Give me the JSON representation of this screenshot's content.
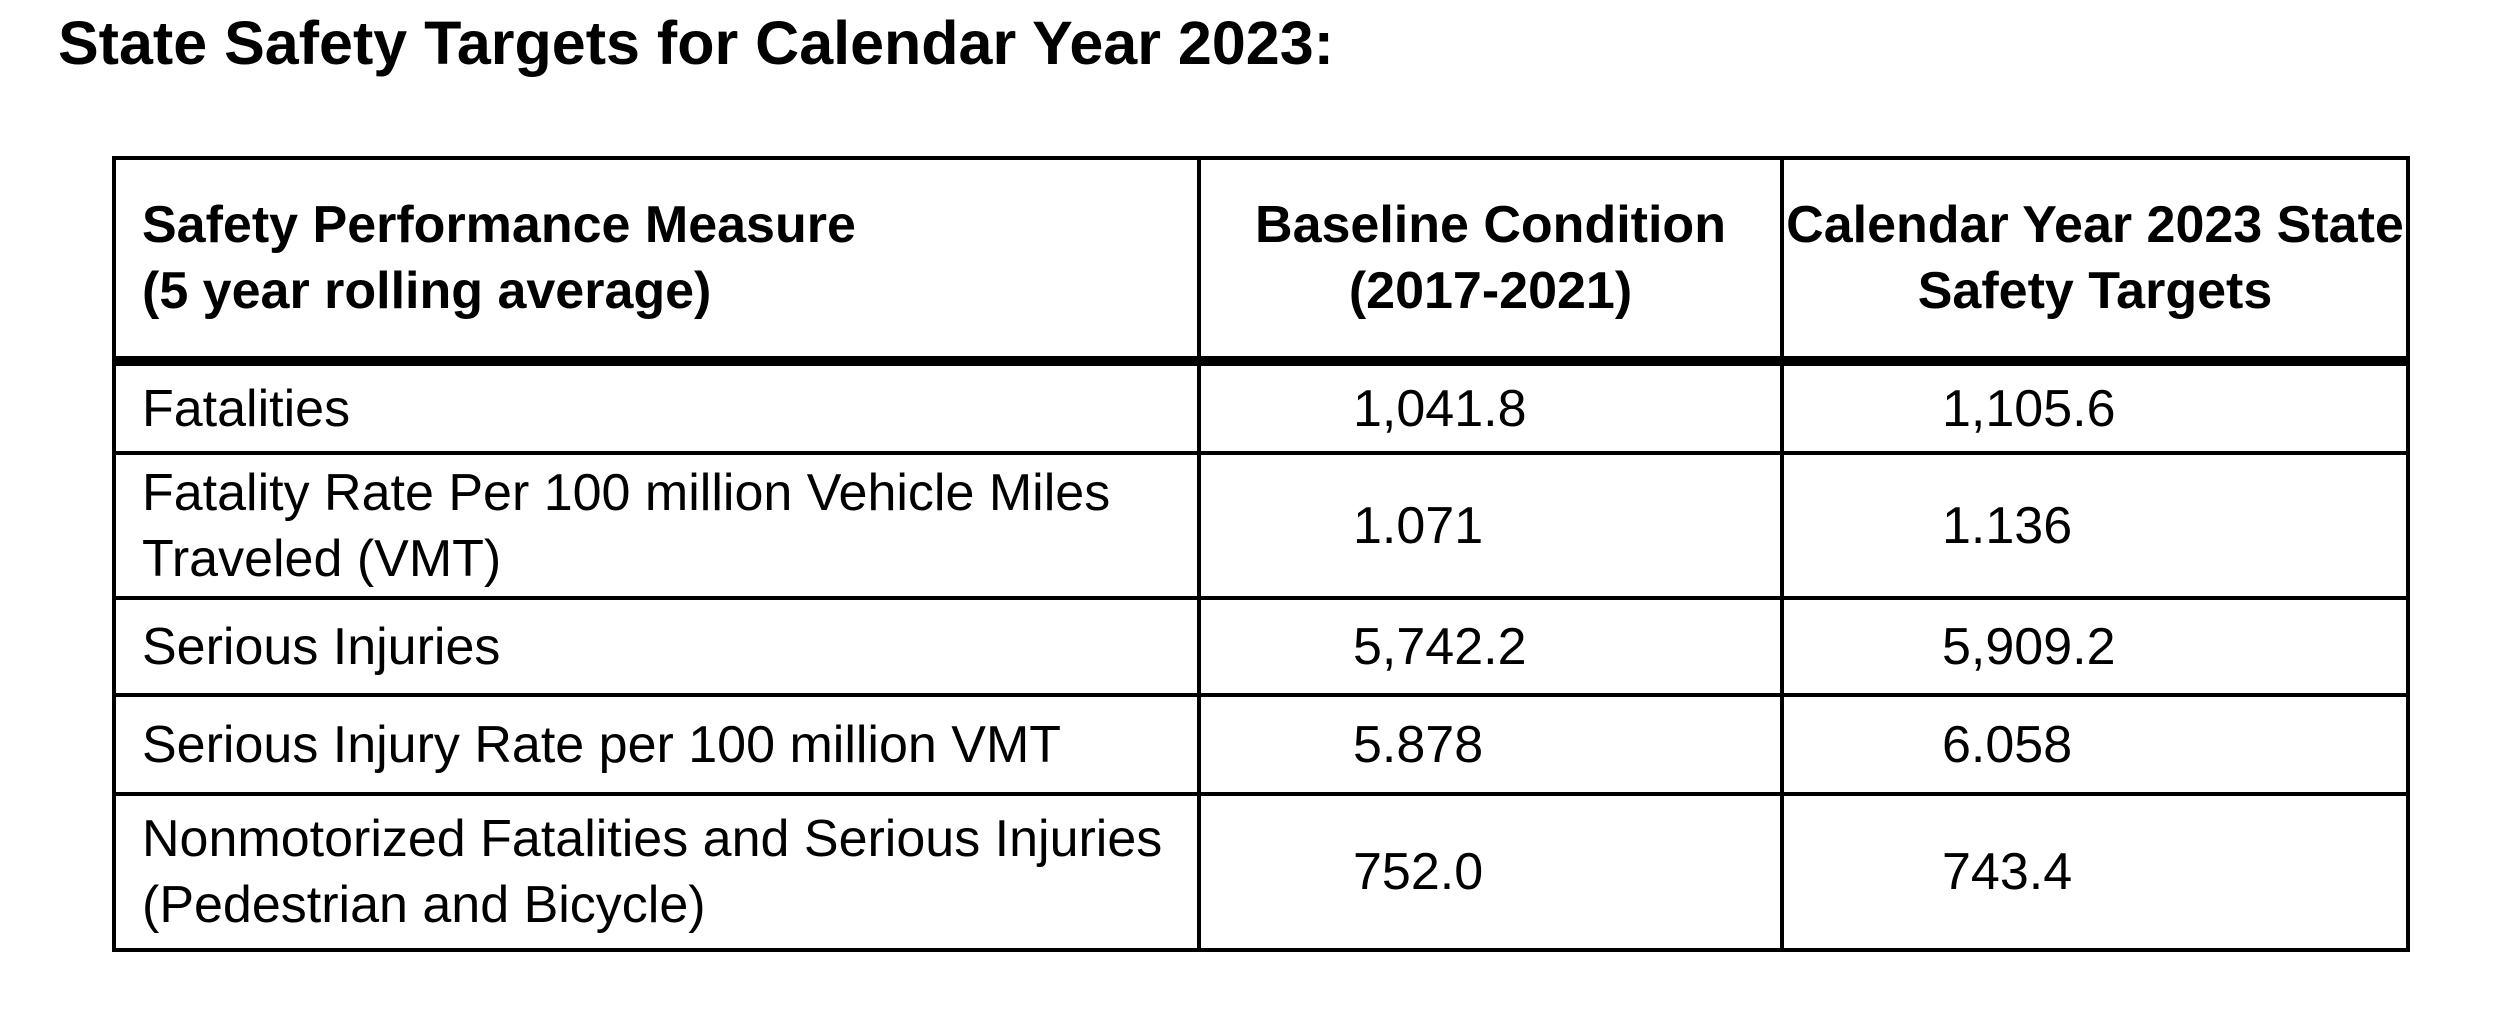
{
  "page": {
    "title": "State Safety Targets for Calendar Year 2023:"
  },
  "table": {
    "header": {
      "measure_line1": "Safety Performance Measure",
      "measure_line2": "(5 year rolling average)",
      "baseline_line1": "Baseline Condition",
      "baseline_line2": "(2017-2021)",
      "target_line1": "Calendar Year 2023 State",
      "target_line2": "Safety Targets"
    },
    "rows": [
      {
        "measure": "Fatalities",
        "baseline": "1,041.8",
        "target": "1,105.6"
      },
      {
        "measure": "Fatality Rate Per 100 million Vehicle Miles Traveled (VMT)",
        "baseline": "1.071",
        "target": "1.136"
      },
      {
        "measure": "Serious Injuries",
        "baseline": "5,742.2",
        "target": "5,909.2"
      },
      {
        "measure": "Serious Injury Rate per 100 million VMT",
        "baseline": "5.878",
        "target": "6.058"
      },
      {
        "measure": "Nonmotorized Fatalities and Serious Injuries (Pedestrian and Bicycle)",
        "baseline": "752.0",
        "target": "743.4"
      }
    ]
  }
}
